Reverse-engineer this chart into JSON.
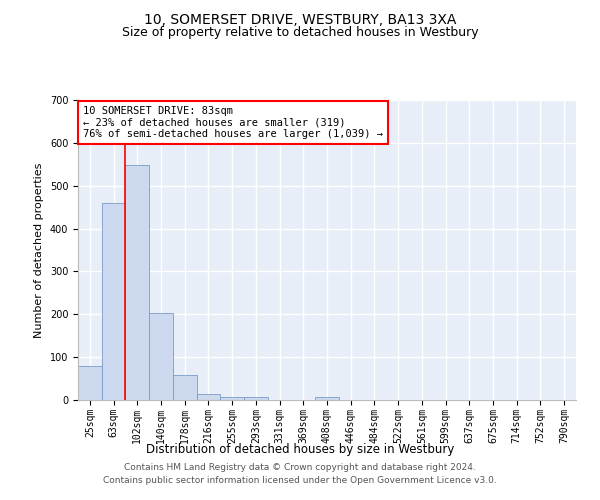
{
  "title": "10, SOMERSET DRIVE, WESTBURY, BA13 3XA",
  "subtitle": "Size of property relative to detached houses in Westbury",
  "xlabel": "Distribution of detached houses by size in Westbury",
  "ylabel": "Number of detached properties",
  "categories": [
    "25sqm",
    "63sqm",
    "102sqm",
    "140sqm",
    "178sqm",
    "216sqm",
    "255sqm",
    "293sqm",
    "331sqm",
    "369sqm",
    "408sqm",
    "446sqm",
    "484sqm",
    "522sqm",
    "561sqm",
    "599sqm",
    "637sqm",
    "675sqm",
    "714sqm",
    "752sqm",
    "790sqm"
  ],
  "values": [
    80,
    460,
    548,
    203,
    58,
    15,
    8,
    8,
    0,
    0,
    8,
    0,
    0,
    0,
    0,
    0,
    0,
    0,
    0,
    0,
    0
  ],
  "bar_color": "#ccd9ee",
  "bar_edge_color": "#7a9cc8",
  "background_color": "#e8eef8",
  "grid_color": "#ffffff",
  "annotation_box_text": "10 SOMERSET DRIVE: 83sqm\n← 23% of detached houses are smaller (319)\n76% of semi-detached houses are larger (1,039) →",
  "red_line_x": 1.5,
  "ylim": [
    0,
    700
  ],
  "yticks": [
    0,
    100,
    200,
    300,
    400,
    500,
    600,
    700
  ],
  "footer_line1": "Contains HM Land Registry data © Crown copyright and database right 2024.",
  "footer_line2": "Contains public sector information licensed under the Open Government Licence v3.0.",
  "title_fontsize": 10,
  "subtitle_fontsize": 9,
  "xlabel_fontsize": 8.5,
  "ylabel_fontsize": 8,
  "tick_fontsize": 7,
  "annotation_fontsize": 7.5,
  "footer_fontsize": 6.5
}
